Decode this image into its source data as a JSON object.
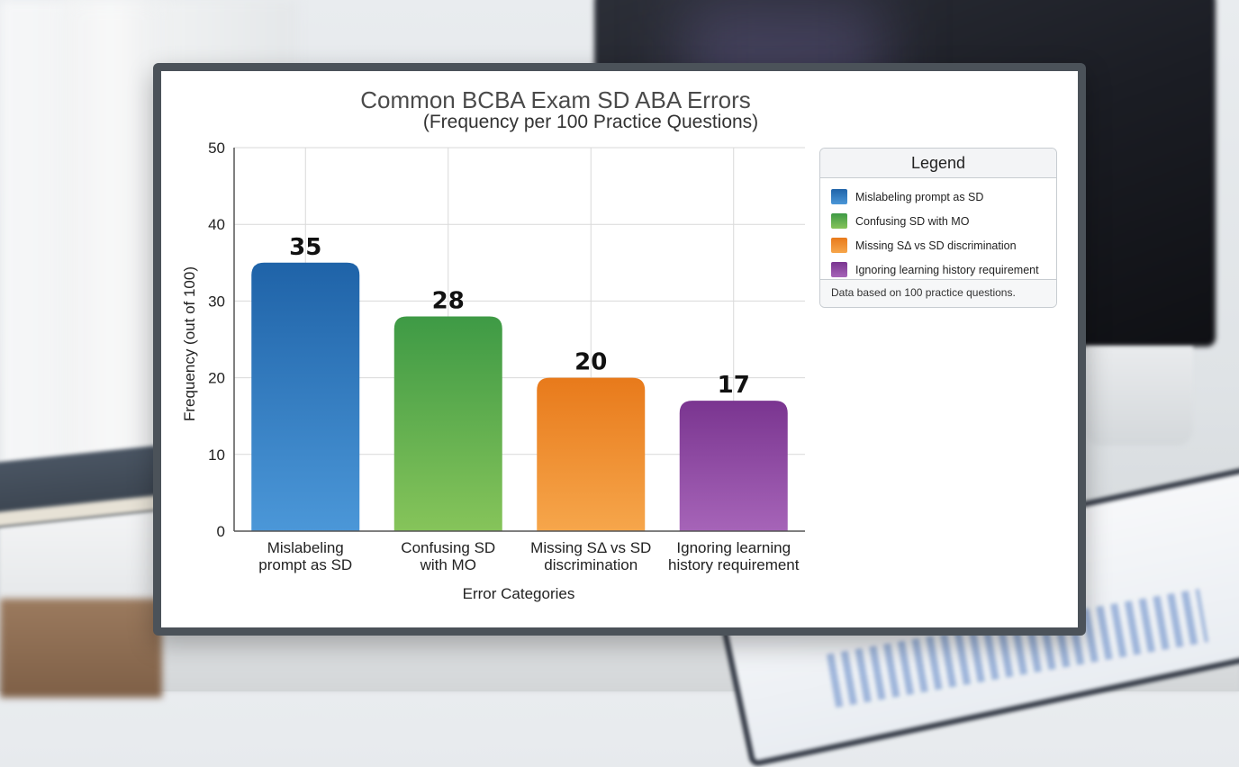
{
  "chart_data": {
    "type": "bar",
    "title": "Common BCBA Exam SD ABA Errors",
    "subtitle": "(Frequency per 100 Practice Questions)",
    "xlabel": "Error Categories",
    "ylabel": "Frequency (out of 100)",
    "ylim": [
      0,
      50
    ],
    "yticks": [
      0,
      10,
      20,
      30,
      40,
      50
    ],
    "grid": true,
    "categories": [
      [
        "Mislabeling",
        "prompt as SD"
      ],
      [
        "Confusing SD",
        "with MO"
      ],
      [
        "Missing SΔ vs SD",
        "discrimination"
      ],
      [
        "Ignoring learning",
        "history requirement"
      ]
    ],
    "values": [
      35,
      28,
      20,
      17
    ],
    "colors": [
      [
        "#1f63a8",
        "#4b97d8"
      ],
      [
        "#3e9a45",
        "#86c45a"
      ],
      [
        "#e87a1b",
        "#f6a64b"
      ],
      [
        "#7a3590",
        "#a664b8"
      ]
    ],
    "legend_placement": "right"
  },
  "legend": {
    "title": "Legend",
    "items": [
      {
        "label": "Mislabeling prompt as SD",
        "color": "#2a6db5"
      },
      {
        "label": "Confusing SD with MO",
        "color": "#4fa54c"
      },
      {
        "label": "Missing SΔ vs SD discrimination",
        "color": "#f08a2a"
      },
      {
        "label": "Ignoring learning history requirement",
        "color": "#8a44a0"
      }
    ],
    "note": "Data based on 100 practice questions."
  }
}
